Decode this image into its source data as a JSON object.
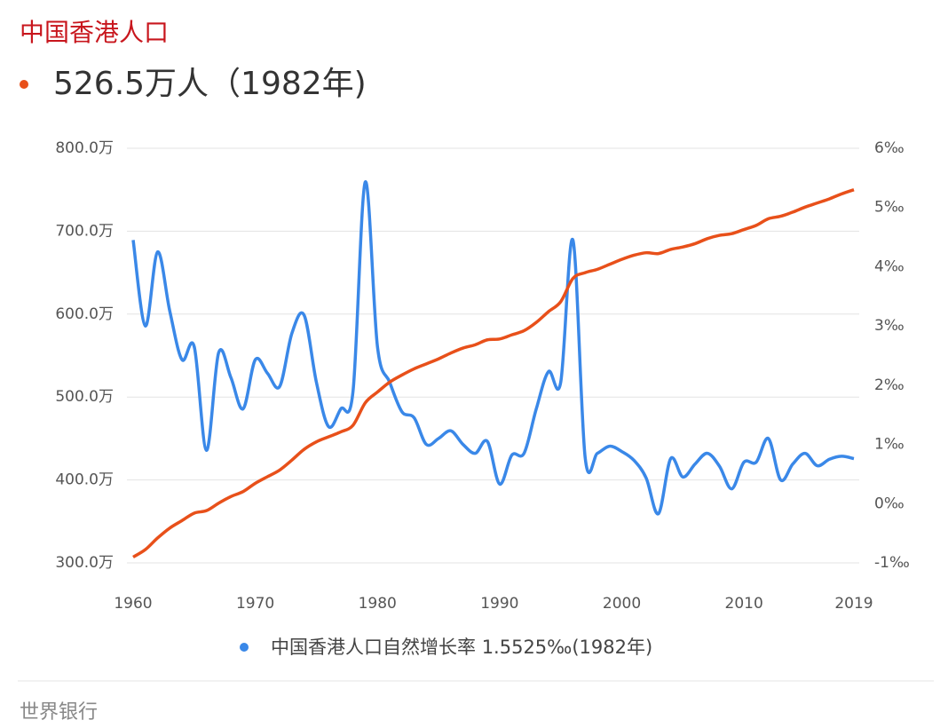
{
  "chart_data": {
    "type": "line",
    "title": "中国香港人口",
    "highlight": "526.5万人（1982年)",
    "legend_value": "1.5525‰(1982年)",
    "source": "世界银行",
    "x": [
      1960,
      1961,
      1962,
      1963,
      1964,
      1965,
      1966,
      1967,
      1968,
      1969,
      1970,
      1971,
      1972,
      1973,
      1974,
      1975,
      1976,
      1977,
      1978,
      1979,
      1980,
      1981,
      1982,
      1983,
      1984,
      1985,
      1986,
      1987,
      1988,
      1989,
      1990,
      1991,
      1992,
      1993,
      1994,
      1995,
      1996,
      1997,
      1998,
      1999,
      2000,
      2001,
      2002,
      2003,
      2004,
      2005,
      2006,
      2007,
      2008,
      2009,
      2010,
      2011,
      2012,
      2013,
      2014,
      2015,
      2016,
      2017,
      2018,
      2019
    ],
    "series": [
      {
        "name": "中国香港人口",
        "color": "#e8501a",
        "axis": "y",
        "values": [
          307,
          316,
          330,
          342,
          351,
          360,
          363,
          372,
          380,
          386,
          396,
          404,
          412,
          424,
          437,
          446,
          452,
          458,
          466,
          493,
          506,
          518,
          526.5,
          534,
          540,
          546,
          553,
          559,
          563,
          569,
          570,
          575,
          580,
          590,
          603,
          615,
          643,
          650,
          654,
          660,
          666,
          671,
          674,
          673,
          678,
          681,
          685,
          691,
          695,
          697,
          702,
          707,
          715,
          718,
          723,
          729,
          734,
          739,
          745,
          750
        ]
      },
      {
        "name": "中国香港人口自然增长率",
        "color": "#3a88e8",
        "axis": "y2",
        "values": [
          4.45,
          3.0,
          4.25,
          3.25,
          2.43,
          2.65,
          0.9,
          2.55,
          2.13,
          1.6,
          2.43,
          2.2,
          1.98,
          2.88,
          3.18,
          2.05,
          1.3,
          1.6,
          1.9,
          5.43,
          2.65,
          2.05,
          1.5525,
          1.45,
          1.0,
          1.1,
          1.23,
          1.0,
          0.85,
          1.05,
          0.33,
          0.82,
          0.85,
          1.6,
          2.23,
          2.05,
          4.45,
          0.78,
          0.85,
          0.97,
          0.88,
          0.73,
          0.43,
          -0.17,
          0.76,
          0.45,
          0.67,
          0.85,
          0.63,
          0.25,
          0.7,
          0.7,
          1.1,
          0.4,
          0.67,
          0.85,
          0.64,
          0.75,
          0.8,
          0.76
        ]
      }
    ],
    "xlim": [
      1960,
      2019
    ],
    "xticks": [
      1960,
      1970,
      1980,
      1990,
      2000,
      2010,
      2019
    ],
    "ylim": [
      300,
      800
    ],
    "yticks": [
      {
        "value": 300,
        "label": "300.0万"
      },
      {
        "value": 400,
        "label": "400.0万"
      },
      {
        "value": 500,
        "label": "500.0万"
      },
      {
        "value": 600,
        "label": "600.0万"
      },
      {
        "value": 700,
        "label": "700.0万"
      },
      {
        "value": 800,
        "label": "800.0万"
      }
    ],
    "y2lim": [
      -1,
      6
    ],
    "y2ticks": [
      {
        "value": -1,
        "label": "-1‰"
      },
      {
        "value": 0,
        "label": "0‰"
      },
      {
        "value": 1,
        "label": "1‰"
      },
      {
        "value": 2,
        "label": "2‰"
      },
      {
        "value": 3,
        "label": "3‰"
      },
      {
        "value": 4,
        "label": "4‰"
      },
      {
        "value": 5,
        "label": "5‰"
      },
      {
        "value": 6,
        "label": "6‰"
      }
    ],
    "grid": true
  }
}
